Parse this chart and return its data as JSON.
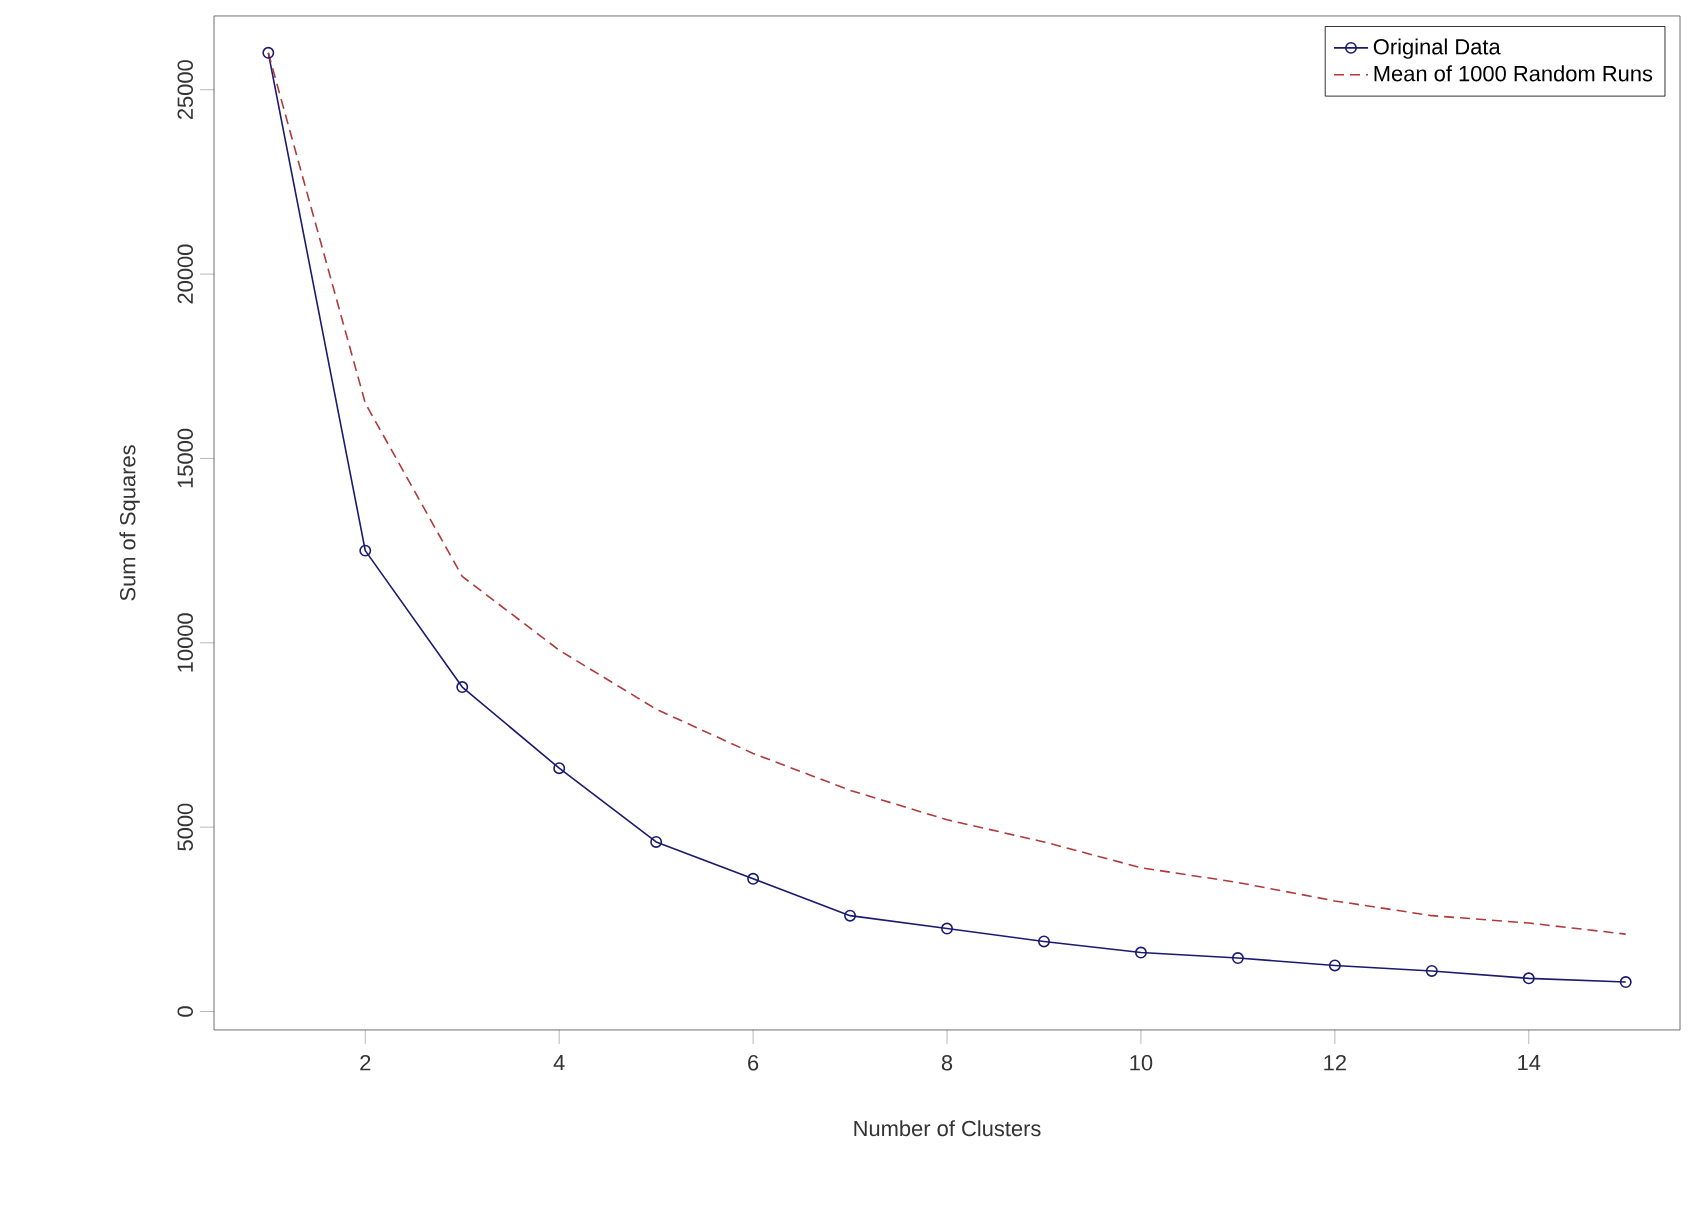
{
  "chart_data": {
    "type": "line",
    "xlabel": "Number of Clusters",
    "ylabel": "Sum of Squares",
    "x": [
      1,
      2,
      3,
      4,
      5,
      6,
      7,
      8,
      9,
      10,
      11,
      12,
      13,
      14,
      15
    ],
    "series": [
      {
        "name": "Original Data",
        "color": "#1a1a6e",
        "line_style": "solid",
        "marker": "circle",
        "values": [
          26000,
          12500,
          8800,
          6600,
          4600,
          3600,
          2600,
          2250,
          1900,
          1600,
          1450,
          1250,
          1100,
          900,
          800
        ]
      },
      {
        "name": "Mean of 1000 Random Runs",
        "color": "#b03a3a",
        "line_style": "dashed",
        "marker": "none",
        "values": [
          26000,
          16500,
          11800,
          9800,
          8200,
          7000,
          6000,
          5200,
          4600,
          3900,
          3500,
          3000,
          2600,
          2400,
          2100
        ]
      }
    ],
    "xlim": [
      0.44,
      15.56
    ],
    "ylim": [
      -500,
      27000
    ],
    "xticks": [
      2,
      4,
      6,
      8,
      10,
      12,
      14
    ],
    "yticks": [
      0,
      5000,
      10000,
      15000,
      20000,
      25000
    ],
    "grid": false,
    "legend": "top right"
  }
}
